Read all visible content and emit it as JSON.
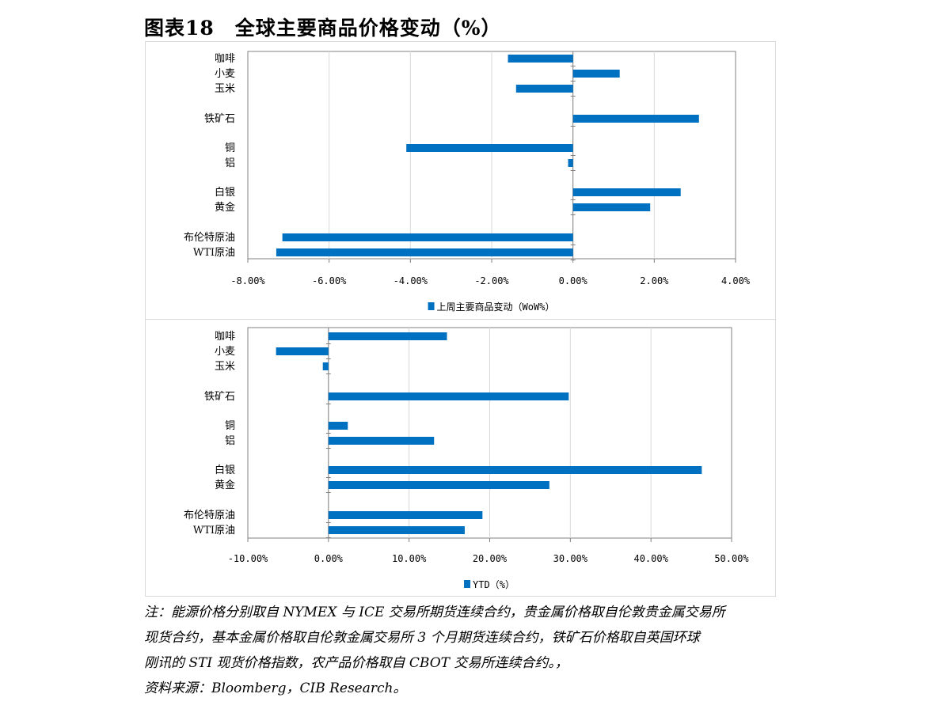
{
  "figure": {
    "title": "图表18　全球主要商品价格变动（%）"
  },
  "colors": {
    "bar": "#0070c0",
    "grid": "#d9d9d9",
    "axis": "#808080"
  },
  "chart_data": [
    {
      "type": "bar",
      "orientation": "horizontal",
      "categories": [
        "咖啡",
        "小麦",
        "玉米",
        "铁矿石",
        "铜",
        "铝",
        "白银",
        "黄金",
        "布伦特原油",
        "WTI原油"
      ],
      "series": [
        {
          "name": "上周主要商品变动（WoW%）",
          "values": [
            -1.6,
            1.15,
            -1.4,
            3.1,
            -4.1,
            -0.12,
            2.65,
            1.9,
            -7.15,
            -7.3
          ]
        }
      ],
      "xlim": [
        -8,
        4
      ],
      "xticks": [
        -8,
        -6,
        -4,
        -2,
        0,
        2,
        4
      ],
      "xtick_labels": [
        "-8.00%",
        "-6.00%",
        "-4.00%",
        "-2.00%",
        "0.00%",
        "2.00%",
        "4.00%"
      ],
      "legend": {
        "label": "上周主要商品变动（WoW%）",
        "position": "bottom"
      },
      "grid": true
    },
    {
      "type": "bar",
      "orientation": "horizontal",
      "categories": [
        "咖啡",
        "小麦",
        "玉米",
        "铁矿石",
        "铜",
        "铝",
        "白银",
        "黄金",
        "布伦特原油",
        "WTI原油"
      ],
      "series": [
        {
          "name": "YTD（%）",
          "values": [
            14.7,
            -6.5,
            -0.7,
            29.8,
            2.4,
            13.1,
            46.3,
            27.4,
            19.1,
            16.9
          ]
        }
      ],
      "xlim": [
        -10,
        50
      ],
      "xticks": [
        -10,
        0,
        10,
        20,
        30,
        40,
        50
      ],
      "xtick_labels": [
        "-10.00%",
        "0.00%",
        "10.00%",
        "20.00%",
        "30.00%",
        "40.00%",
        "50.00%"
      ],
      "legend": {
        "label": "YTD（%）",
        "position": "bottom"
      },
      "grid": true
    }
  ],
  "notes": {
    "line1": "注：能源价格分别取自 NYMEX 与 ICE 交易所期货连续合约，贵金属价格取自伦敦贵金属交易所",
    "line2": "现货合约，基本金属价格取自伦敦金属交易所 3 个月期货连续合约，铁矿石价格取自英国环球",
    "line3": "刚讯的 STI 现货价格指数，农产品价格取自 CBOT 交易所连续合约。，",
    "source": "资料来源：Bloomberg，CIB Research。"
  }
}
